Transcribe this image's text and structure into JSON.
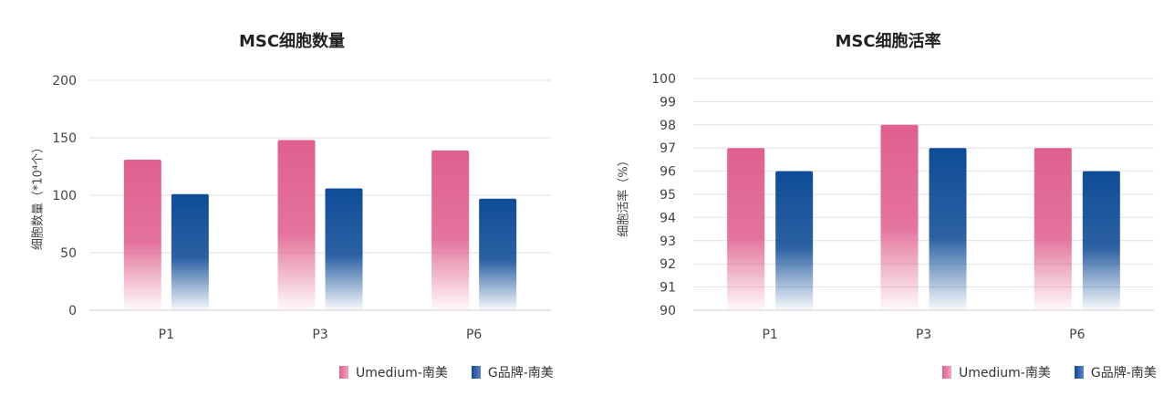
{
  "colors": {
    "pink": "#e0608f",
    "blue": "#0f4c97",
    "grid": "#e2e2e2",
    "axis": "#cfcfcf"
  },
  "charts": [
    {
      "title": "MSC细胞数量",
      "ylabel": "细胞数量（*10⁴个）",
      "legend": [
        "Umedium-南美",
        "G品牌-南美"
      ]
    },
    {
      "title": "MSC细胞活率",
      "ylabel": "细胞活率（%）",
      "legend": [
        "Umedium-南美",
        "G品牌-南美"
      ]
    }
  ],
  "chart_data": [
    {
      "type": "bar",
      "title": "MSC细胞数量",
      "ylabel": "细胞数量（*10⁴个）",
      "xlabel": "",
      "categories": [
        "P1",
        "P3",
        "P6"
      ],
      "series": [
        {
          "name": "Umedium-南美",
          "values": [
            131,
            148,
            139
          ],
          "color": "#e0608f"
        },
        {
          "name": "G品牌-南美",
          "values": [
            101,
            106,
            97
          ],
          "color": "#0f4c97"
        }
      ],
      "ylim": [
        0,
        200
      ],
      "yticks": [
        0,
        50,
        100,
        150,
        200
      ],
      "grid": true,
      "legend_position": "bottom-right"
    },
    {
      "type": "bar",
      "title": "MSC细胞活率",
      "ylabel": "细胞活率（%）",
      "xlabel": "",
      "categories": [
        "P1",
        "P3",
        "P6"
      ],
      "series": [
        {
          "name": "Umedium-南美",
          "values": [
            97,
            98,
            97
          ],
          "color": "#e0608f"
        },
        {
          "name": "G品牌-南美",
          "values": [
            96,
            97,
            96
          ],
          "color": "#0f4c97"
        }
      ],
      "ylim": [
        90,
        100
      ],
      "yticks": [
        90,
        91,
        92,
        93,
        94,
        95,
        96,
        97,
        98,
        99,
        100
      ],
      "grid": true,
      "legend_position": "bottom-right"
    }
  ]
}
